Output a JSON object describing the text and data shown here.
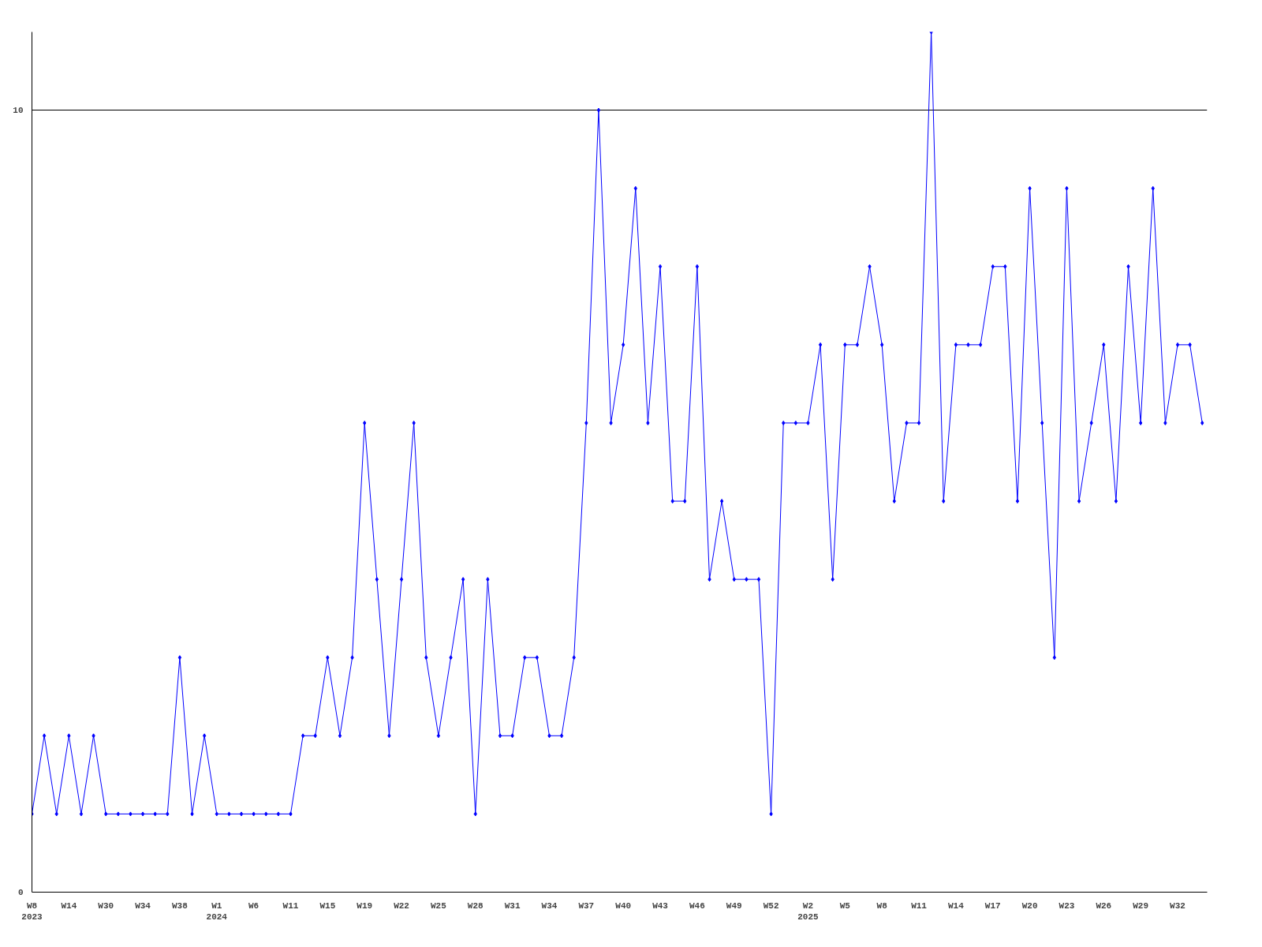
{
  "chart_data": {
    "type": "line",
    "categories": [
      "W8\n2023",
      null,
      null,
      "W14",
      null,
      null,
      "W30",
      null,
      null,
      "W34",
      null,
      null,
      "W38",
      null,
      null,
      "W1\n2024",
      null,
      null,
      "W6",
      null,
      null,
      "W11",
      null,
      null,
      "W15",
      null,
      null,
      "W19",
      null,
      null,
      "W22",
      null,
      null,
      "W25",
      null,
      null,
      "W28",
      null,
      null,
      "W31",
      null,
      null,
      "W34",
      null,
      null,
      "W37",
      null,
      null,
      "W40",
      null,
      null,
      "W43",
      null,
      null,
      "W46",
      null,
      null,
      "W49",
      null,
      null,
      "W52",
      null,
      null,
      "W2\n2025",
      null,
      null,
      "W5",
      null,
      null,
      "W8",
      null,
      null,
      "W11",
      null,
      null,
      "W14",
      null,
      null,
      "W17",
      null,
      null,
      "W20",
      null,
      null,
      "W23",
      null,
      null,
      "W26",
      null,
      null,
      "W29",
      null,
      null,
      "W32",
      null,
      null
    ],
    "series": [
      {
        "color": "#0000ff",
        "values": [
          1,
          2,
          1,
          2,
          1,
          2,
          1,
          1,
          1,
          1,
          1,
          1,
          3,
          1,
          2,
          1,
          1,
          1,
          1,
          1,
          1,
          1,
          2,
          2,
          3,
          2,
          3,
          6,
          4,
          2,
          4,
          6,
          3,
          2,
          3,
          4,
          1,
          4,
          2,
          2,
          3,
          3,
          2,
          2,
          3,
          6,
          10,
          6,
          7,
          9,
          6,
          8,
          5,
          5,
          8,
          4,
          5,
          4,
          4,
          4,
          1,
          6,
          6,
          6,
          7,
          4,
          7,
          7,
          8,
          7,
          5,
          6,
          6,
          11,
          5,
          7,
          7,
          7,
          8,
          8,
          5,
          9,
          6,
          3,
          9,
          5,
          6,
          7,
          5,
          8,
          6,
          9,
          6,
          7,
          7,
          6
        ]
      }
    ],
    "ylim": [
      0,
      11
    ],
    "yticks": [
      0,
      10
    ],
    "grid": "y",
    "marker": "diamond",
    "line_style": "solid"
  }
}
